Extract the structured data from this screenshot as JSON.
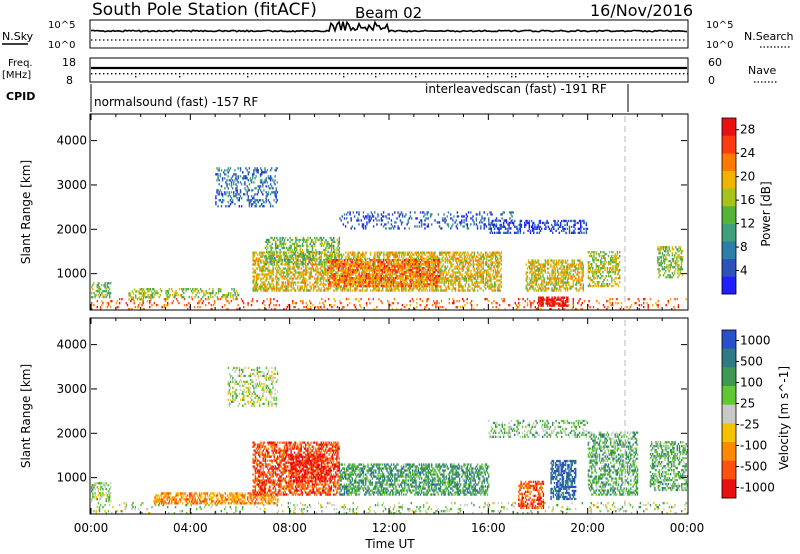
{
  "header": {
    "title": "South Pole Station (fitACF)",
    "beam": "Beam 02",
    "date": "16/Nov/2016"
  },
  "summary_panels": {
    "nsky_label": "N.Sky",
    "nsearch_label": "N.Search",
    "noise_ticks_left": [
      "10^5",
      "10^0"
    ],
    "noise_ticks_right": [
      "10^5",
      "10^0"
    ],
    "freq_label_1": "Freq.",
    "freq_label_2": "[MHz]",
    "freq_ticks": [
      "18",
      "8"
    ],
    "nave_ticks": [
      "60",
      "0"
    ],
    "nave_label": "Nave",
    "cpid_label": "CPID",
    "cpid_1": "normalsound (fast) -157 RF",
    "cpid_2": "interleavedscan (fast) -191 RF"
  },
  "chart_data": [
    {
      "type": "heatmap",
      "title": "",
      "xlabel": "Time UT",
      "ylabel": "Slant Range [km]",
      "xlim": [
        0,
        24
      ],
      "ylim": [
        180,
        4600
      ],
      "x_ticks": [
        "00:00",
        "04:00",
        "08:00",
        "12:00",
        "16:00",
        "20:00",
        "00:00"
      ],
      "y_ticks": [
        1000,
        2000,
        3000,
        4000
      ],
      "colorbar": {
        "label": "Power [dB]",
        "ticks": [
          4,
          8,
          12,
          16,
          20,
          24,
          28
        ],
        "range": [
          0,
          30
        ],
        "colors": [
          "#1f1fff",
          "#2a52b8",
          "#2e7fa8",
          "#3f9f7a",
          "#56b33a",
          "#a7c21a",
          "#f0b400",
          "#ff7a00",
          "#ff3a10",
          "#e81010"
        ]
      },
      "regions": [
        {
          "t": [
            0.0,
            24.0
          ],
          "r": [
            180,
            420
          ],
          "level": 0.8,
          "density": 0.14
        },
        {
          "t": [
            0.0,
            0.8
          ],
          "r": [
            450,
            800
          ],
          "level": 0.45,
          "density": 0.45
        },
        {
          "t": [
            1.5,
            2.5
          ],
          "r": [
            400,
            650
          ],
          "level": 0.55,
          "density": 0.35
        },
        {
          "t": [
            2.0,
            6.0
          ],
          "r": [
            450,
            650
          ],
          "level": 0.5,
          "density": 0.35
        },
        {
          "t": [
            5.0,
            7.5
          ],
          "r": [
            2500,
            3400
          ],
          "level": 0.22,
          "density": 0.3
        },
        {
          "t": [
            6.5,
            16.5
          ],
          "r": [
            600,
            1500
          ],
          "level": 0.62,
          "density": 0.55
        },
        {
          "t": [
            7.0,
            10.0
          ],
          "r": [
            1200,
            1800
          ],
          "level": 0.45,
          "density": 0.4
        },
        {
          "t": [
            9.5,
            14.0
          ],
          "r": [
            700,
            1300
          ],
          "level": 0.78,
          "density": 0.55
        },
        {
          "t": [
            10.0,
            17.0
          ],
          "r": [
            2000,
            2400
          ],
          "level": 0.15,
          "density": 0.2
        },
        {
          "t": [
            16.0,
            20.0
          ],
          "r": [
            1900,
            2200
          ],
          "level": 0.12,
          "density": 0.35
        },
        {
          "t": [
            17.5,
            19.8
          ],
          "r": [
            600,
            1300
          ],
          "level": 0.6,
          "density": 0.55
        },
        {
          "t": [
            18.0,
            19.2
          ],
          "r": [
            260,
            480
          ],
          "level": 0.98,
          "density": 0.75
        },
        {
          "t": [
            20.0,
            21.3
          ],
          "r": [
            700,
            1500
          ],
          "level": 0.55,
          "density": 0.45
        },
        {
          "t": [
            22.8,
            23.8
          ],
          "r": [
            900,
            1600
          ],
          "level": 0.5,
          "density": 0.45
        }
      ]
    },
    {
      "type": "heatmap",
      "title": "",
      "xlabel": "Time UT",
      "ylabel": "Slant Range [km]",
      "xlim": [
        0,
        24
      ],
      "ylim": [
        180,
        4600
      ],
      "x_ticks": [
        "00:00",
        "04:00",
        "08:00",
        "12:00",
        "16:00",
        "20:00",
        "00:00"
      ],
      "y_ticks": [
        1000,
        2000,
        3000,
        4000
      ],
      "colorbar": {
        "label": "Velocity [m s^-1]",
        "ticks": [
          1000,
          500,
          100,
          25,
          -25,
          -100,
          -500,
          -1000
        ],
        "range": [
          -1000,
          1000
        ],
        "colors": [
          "#2850c8",
          "#2e7a86",
          "#3e9a52",
          "#62c832",
          "#c8c8c8",
          "#f6c200",
          "#ff8a00",
          "#ff5010",
          "#e81010"
        ]
      },
      "regions": [
        {
          "t": [
            0.0,
            24.0
          ],
          "r": [
            180,
            420
          ],
          "level": 0.45,
          "density": 0.12
        },
        {
          "t": [
            0.0,
            0.8
          ],
          "r": [
            450,
            900
          ],
          "level": 0.45,
          "density": 0.4
        },
        {
          "t": [
            2.5,
            7.5
          ],
          "r": [
            400,
            650
          ],
          "level": 0.72,
          "density": 0.55
        },
        {
          "t": [
            5.5,
            7.5
          ],
          "r": [
            2600,
            3500
          ],
          "level": 0.47,
          "density": 0.3
        },
        {
          "t": [
            6.5,
            10.0
          ],
          "r": [
            600,
            1800
          ],
          "level": 0.86,
          "density": 0.55
        },
        {
          "t": [
            8.0,
            9.5
          ],
          "r": [
            900,
            1500
          ],
          "level": 0.96,
          "density": 0.5
        },
        {
          "t": [
            10.0,
            16.0
          ],
          "r": [
            600,
            1300
          ],
          "level": 0.28,
          "density": 0.55
        },
        {
          "t": [
            16.0,
            20.0
          ],
          "r": [
            1900,
            2300
          ],
          "level": 0.38,
          "density": 0.3
        },
        {
          "t": [
            17.2,
            18.2
          ],
          "r": [
            300,
            900
          ],
          "level": 0.86,
          "density": 0.5
        },
        {
          "t": [
            18.5,
            19.5
          ],
          "r": [
            500,
            1400
          ],
          "level": 0.1,
          "density": 0.6
        },
        {
          "t": [
            20.0,
            22.0
          ],
          "r": [
            600,
            2000
          ],
          "level": 0.32,
          "density": 0.45
        },
        {
          "t": [
            22.5,
            24.0
          ],
          "r": [
            700,
            1800
          ],
          "level": 0.35,
          "density": 0.45
        }
      ]
    }
  ]
}
